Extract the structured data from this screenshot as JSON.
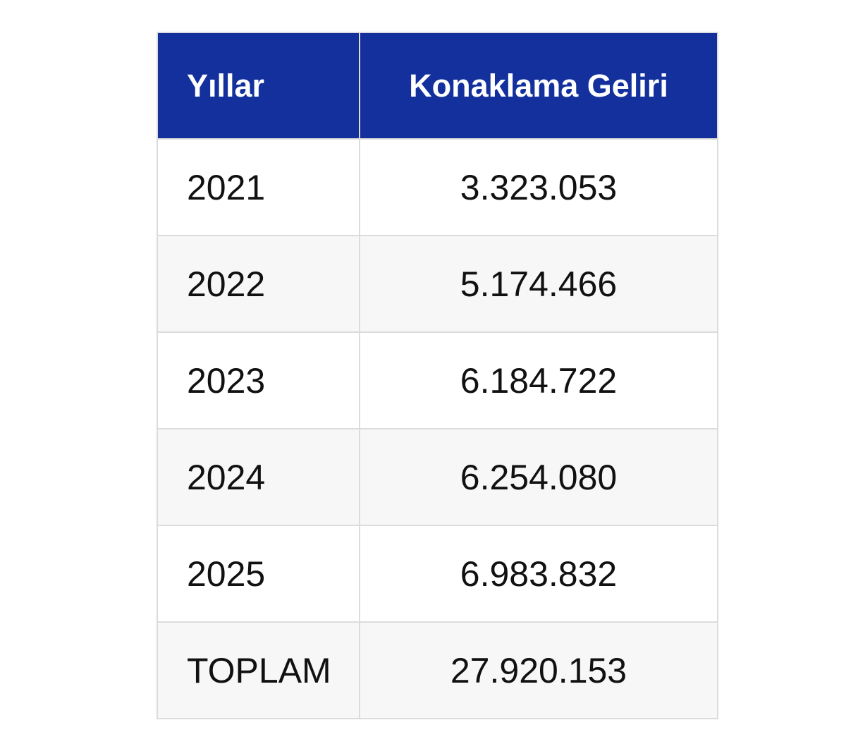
{
  "table": {
    "headers": [
      "Yıllar",
      "Konaklama Geliri"
    ],
    "rows": [
      {
        "year": "2021",
        "value": "3.323.053"
      },
      {
        "year": "2022",
        "value": "5.174.466"
      },
      {
        "year": "2023",
        "value": "6.184.722"
      },
      {
        "year": "2024",
        "value": "6.254.080"
      },
      {
        "year": "2025",
        "value": "6.983.832"
      },
      {
        "year": "TOPLAM",
        "value": "27.920.153"
      }
    ],
    "header_color": "#13309c"
  }
}
